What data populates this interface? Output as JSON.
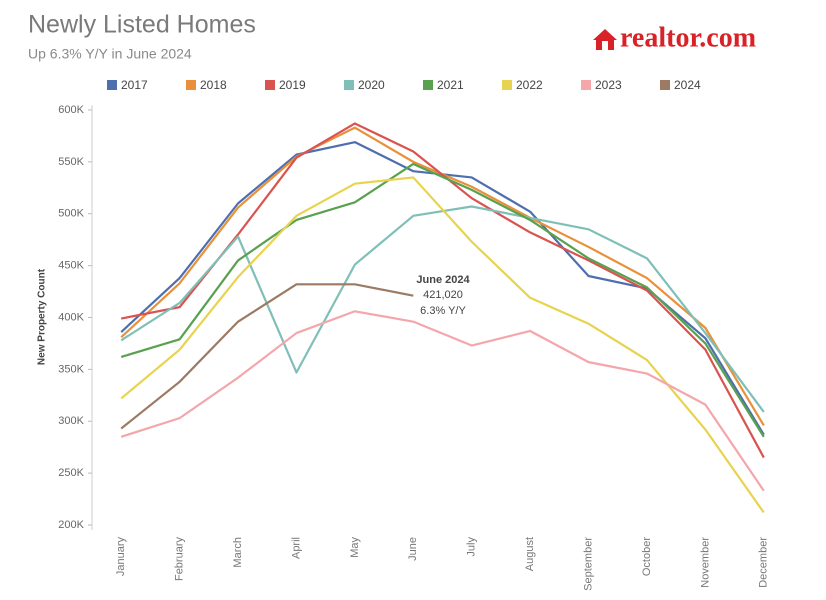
{
  "chart_data": {
    "type": "line",
    "title": "Newly Listed Homes",
    "subtitle": "Up 6.3% Y/Y in June 2024",
    "brand": "realtor.com",
    "y_label": "New Property Count",
    "categories": [
      "January",
      "February",
      "March",
      "April",
      "May",
      "June",
      "July",
      "August",
      "September",
      "October",
      "November",
      "December"
    ],
    "series": [
      {
        "name": "2017",
        "color": "#4e6fae",
        "values": [
          386,
          438,
          510,
          557,
          569,
          541,
          535,
          502,
          440,
          428,
          380,
          287
        ]
      },
      {
        "name": "2018",
        "color": "#e8913a",
        "values": [
          381,
          433,
          506,
          555,
          583,
          550,
          526,
          496,
          468,
          438,
          390,
          296
        ]
      },
      {
        "name": "2019",
        "color": "#d9534f",
        "values": [
          399,
          410,
          480,
          554,
          587,
          560,
          515,
          482,
          455,
          426,
          369,
          265
        ]
      },
      {
        "name": "2020",
        "color": "#7fbfb8",
        "values": [
          378,
          414,
          478,
          347,
          451,
          498,
          507,
          496,
          485,
          457,
          385,
          309
        ]
      },
      {
        "name": "2021",
        "color": "#59a14f",
        "values": [
          362,
          379,
          455,
          494,
          511,
          548,
          523,
          494,
          457,
          429,
          375,
          285
        ]
      },
      {
        "name": "2022",
        "color": "#e8d34e",
        "values": [
          322,
          369,
          439,
          498,
          529,
          535,
          473,
          419,
          394,
          359,
          292,
          212
        ]
      },
      {
        "name": "2023",
        "color": "#f4a6aa",
        "values": [
          285,
          303,
          342,
          385,
          406,
          396,
          373,
          387,
          357,
          346,
          316,
          233
        ]
      },
      {
        "name": "2024",
        "color": "#9c7a64",
        "values": [
          293,
          338,
          396,
          432,
          432,
          421.02,
          null,
          null,
          null,
          null,
          null,
          null
        ]
      }
    ],
    "annotations": [
      "June 2024",
      "421,020",
      "6.3% Y/Y"
    ],
    "ylim": [
      200,
      600
    ],
    "yticks": [
      {
        "value": 200,
        "label": "200K"
      },
      {
        "value": 250,
        "label": "250K"
      },
      {
        "value": 300,
        "label": "300K"
      },
      {
        "value": 350,
        "label": "350K"
      },
      {
        "value": 400,
        "label": "400K"
      },
      {
        "value": 450,
        "label": "450K"
      },
      {
        "value": 500,
        "label": "500K"
      },
      {
        "value": 550,
        "label": "550K"
      },
      {
        "value": 600,
        "label": "600K"
      }
    ]
  }
}
